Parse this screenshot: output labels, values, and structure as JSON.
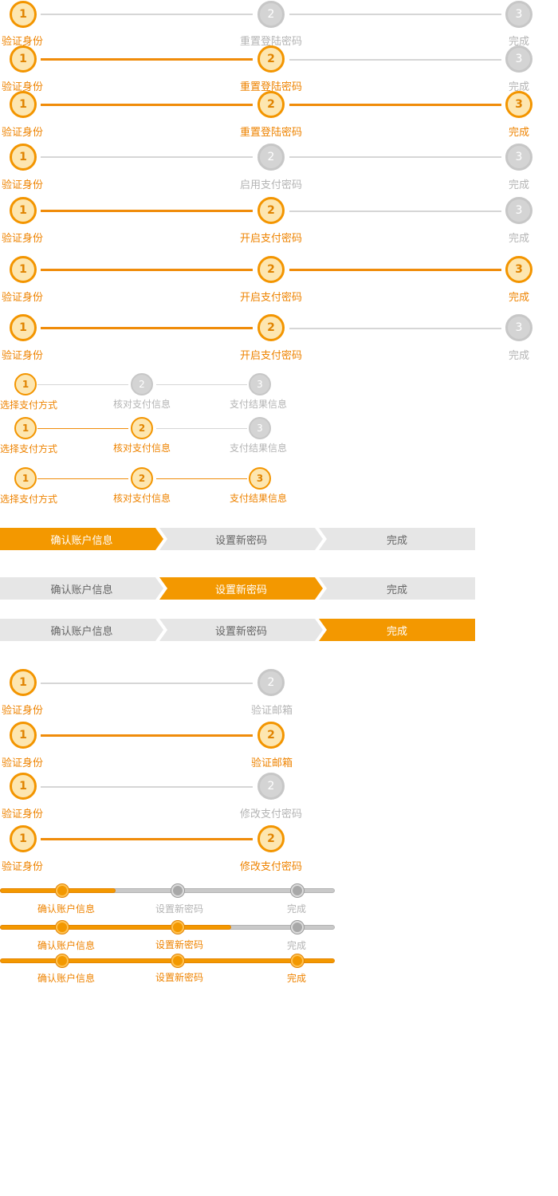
{
  "colors": {
    "accent": "#f39800",
    "muted": "#b4b4b4",
    "track_off": "#d6d6d6",
    "fill_done": "#fde6b0"
  },
  "reset_login": {
    "labels": [
      "验证身份",
      "重置登陆密码",
      "完成"
    ],
    "numbers": [
      "1",
      "2",
      "3"
    ]
  },
  "enable_pay": {
    "labels": [
      "验证身份",
      "启用支付密码",
      "完成"
    ],
    "numbers": [
      "1",
      "2",
      "3"
    ]
  },
  "open_pay": {
    "labels": [
      "验证身份",
      "开启支付密码",
      "完成"
    ],
    "numbers": [
      "1",
      "2",
      "3"
    ]
  },
  "payment": {
    "labels": [
      "选择支付方式",
      "核对支付信息",
      "支付结果信息"
    ],
    "numbers": [
      "1",
      "2",
      "3"
    ]
  },
  "arrow_steps": {
    "labels": [
      "确认账户信息",
      "设置新密码",
      "完成"
    ]
  },
  "verify_email": {
    "labels": [
      "验证身份",
      "验证邮箱"
    ],
    "numbers": [
      "1",
      "2"
    ]
  },
  "modify_pay": {
    "labels": [
      "验证身份",
      "修改支付密码"
    ],
    "numbers": [
      "1",
      "2"
    ]
  },
  "slider_steps": {
    "labels": [
      "确认账户信息",
      "设置新密码",
      "完成"
    ]
  }
}
